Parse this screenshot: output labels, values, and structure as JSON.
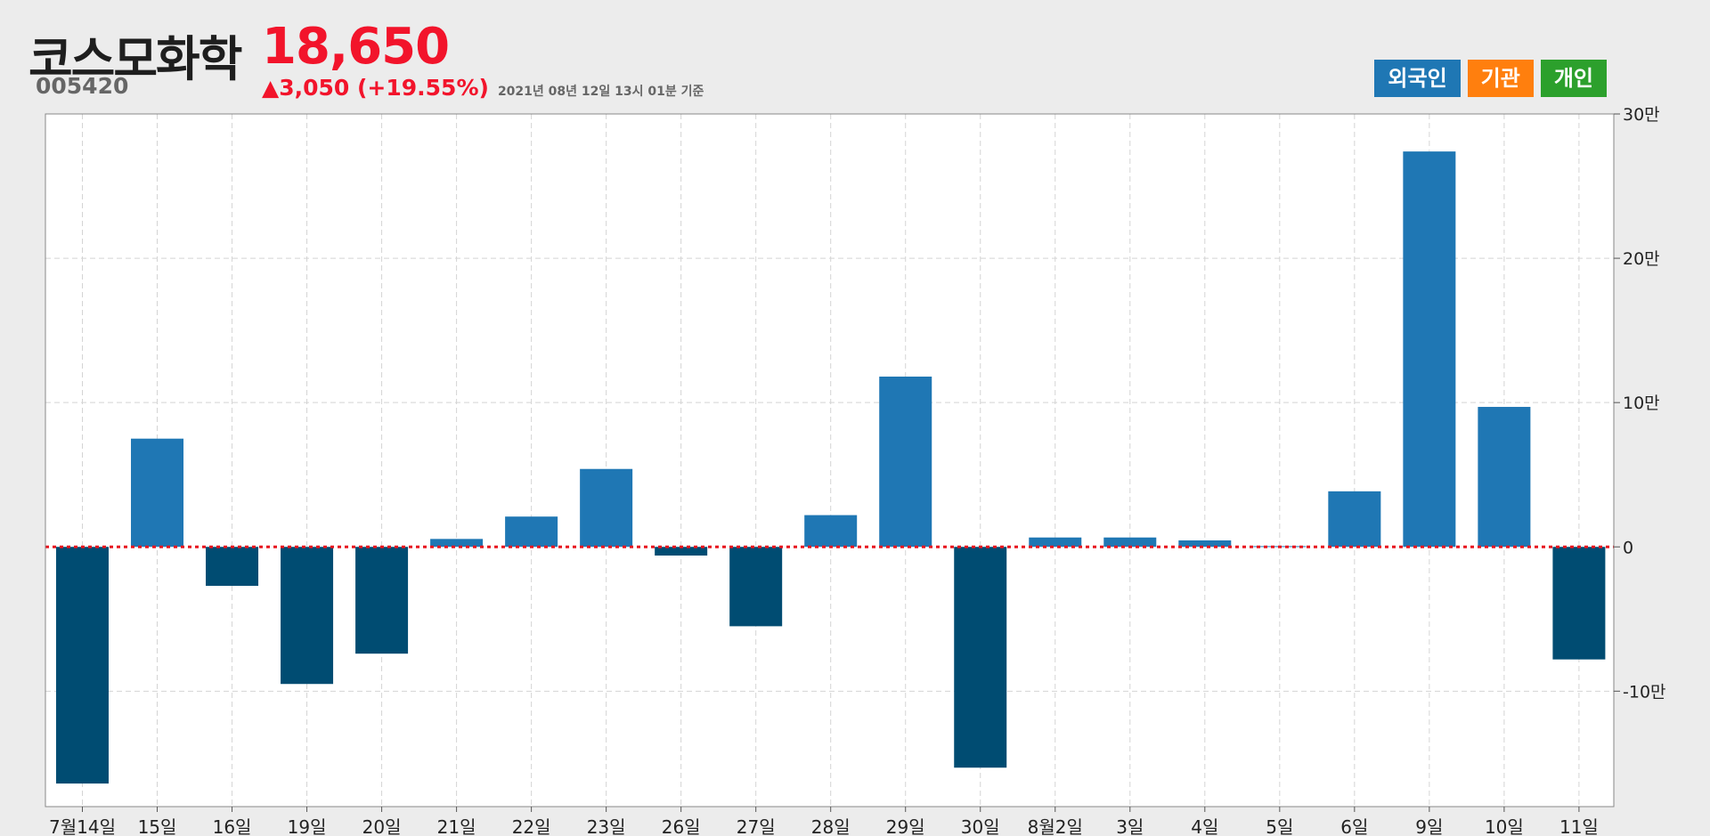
{
  "header": {
    "stock_name": "코스모화학",
    "stock_code": "005420",
    "price": "18,650",
    "change": "▲3,050 (+19.55%)",
    "as_of": "2021년 08년 12일 13시 01분 기준"
  },
  "legend": {
    "items": [
      {
        "label": "외국인",
        "color": "#1f77b4"
      },
      {
        "label": "기관",
        "color": "#ff7f0e"
      },
      {
        "label": "개인",
        "color": "#2ca02c"
      }
    ]
  },
  "colors": {
    "positive": "#1f77b4",
    "negative": "#004c72",
    "zero_line": "#e8141e",
    "grid": "#d4d4d4",
    "axis": "#888888"
  },
  "chart_data": {
    "type": "bar",
    "categories": [
      "7월14일",
      "15일",
      "16일",
      "19일",
      "20일",
      "21일",
      "22일",
      "23일",
      "26일",
      "27일",
      "28일",
      "29일",
      "30일",
      "8월2일",
      "3일",
      "4일",
      "5일",
      "6일",
      "9일",
      "10일",
      "11일"
    ],
    "series": [
      {
        "values": [
          -164000,
          75000,
          -27000,
          -95000,
          -74000,
          5500,
          21000,
          54000,
          -6000,
          -55000,
          22000,
          118000,
          -153000,
          6500,
          6500,
          4500,
          500,
          38500,
          274000,
          97000,
          -78000
        ]
      }
    ],
    "ylim": [
      -180000,
      300000
    ],
    "yticks": [
      -100000,
      0,
      100000,
      200000,
      300000
    ],
    "ytick_labels": [
      "-10만",
      "0",
      "10만",
      "20만",
      "30만"
    ],
    "y_axis_side": "right",
    "grid": true,
    "zero_line": "dotted"
  }
}
